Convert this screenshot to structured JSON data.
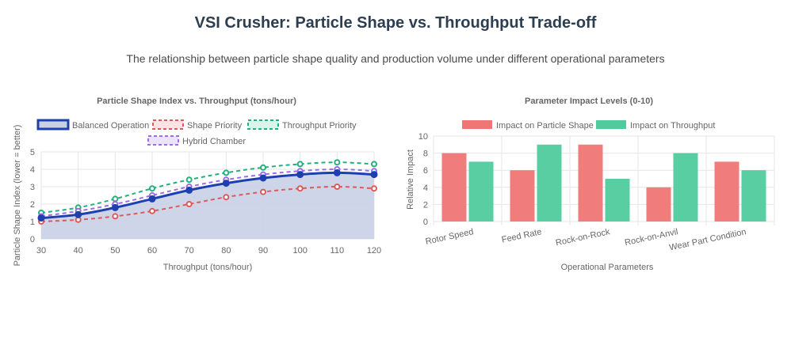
{
  "page": {
    "title": "VSI Crusher: Particle Shape vs. Throughput Trade-off",
    "subtitle": "The relationship between particle shape quality and production volume under different operational parameters"
  },
  "chart_data": [
    {
      "type": "line",
      "title": "Particle Shape Index vs. Throughput (tons/hour)",
      "xlabel": "Throughput (tons/hour)",
      "ylabel": "Particle Shape Index (lower = better)",
      "x": [
        30,
        40,
        50,
        60,
        70,
        80,
        90,
        100,
        110,
        120
      ],
      "ylim": [
        0,
        5
      ],
      "yticks": [
        0,
        1,
        2,
        3,
        4,
        5
      ],
      "grid": true,
      "legend": "top",
      "series": [
        {
          "name": "Balanced Operation",
          "values": [
            1.2,
            1.4,
            1.8,
            2.3,
            2.8,
            3.2,
            3.5,
            3.7,
            3.8,
            3.7
          ],
          "color": "#1e40af",
          "fill": "#c9d0e6",
          "dashed": false
        },
        {
          "name": "Shape Priority",
          "values": [
            1.0,
            1.1,
            1.3,
            1.6,
            2.0,
            2.4,
            2.7,
            2.9,
            3.0,
            2.9
          ],
          "color": "#dc5a5a",
          "fill": "#fde3e3",
          "dashed": true
        },
        {
          "name": "Throughput Priority",
          "values": [
            1.5,
            1.8,
            2.3,
            2.9,
            3.4,
            3.8,
            4.1,
            4.3,
            4.4,
            4.3
          ],
          "color": "#22b07d",
          "fill": "#d9f4ea",
          "dashed": true
        },
        {
          "name": "Hybrid Chamber",
          "values": [
            1.3,
            1.6,
            2.0,
            2.5,
            3.0,
            3.4,
            3.7,
            3.9,
            4.0,
            3.9
          ],
          "color": "#9b6cf0",
          "fill": "#ece3fd",
          "dashed": true
        }
      ]
    },
    {
      "type": "bar",
      "title": "Parameter Impact Levels (0-10)",
      "xlabel": "Operational Parameters",
      "ylabel": "Relative Impact",
      "categories": [
        "Rotor Speed",
        "Feed Rate",
        "Rock-on-Rock",
        "Rock-on-Anvil",
        "Wear Part Condition"
      ],
      "ylim": [
        0,
        10
      ],
      "yticks": [
        0,
        2,
        4,
        6,
        8,
        10
      ],
      "grid": true,
      "legend": "top",
      "series": [
        {
          "name": "Impact on Particle Shape",
          "values": [
            8,
            6,
            9,
            4,
            7
          ],
          "color": "#f07575"
        },
        {
          "name": "Impact on Throughput",
          "values": [
            7,
            9,
            5,
            8,
            6
          ],
          "color": "#4fcb9d"
        }
      ]
    }
  ]
}
